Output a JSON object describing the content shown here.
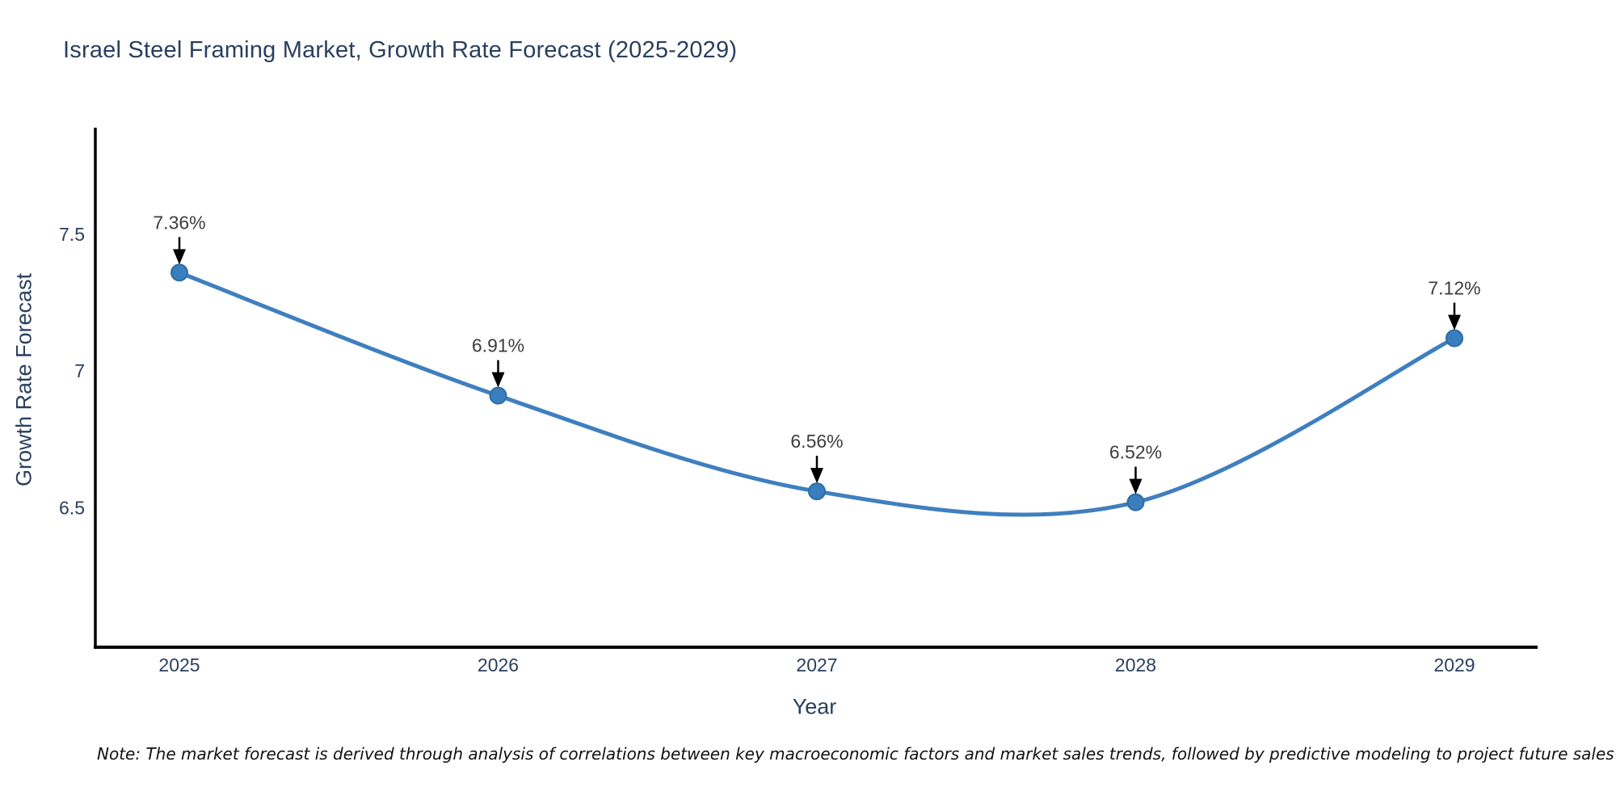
{
  "chart_data": {
    "type": "line",
    "title": "Israel Steel Framing Market, Growth Rate Forecast (2025-2029)",
    "xlabel": "Year",
    "ylabel": "Growth Rate Forecast",
    "categories": [
      "2025",
      "2026",
      "2027",
      "2028",
      "2029"
    ],
    "x": [
      2025,
      2026,
      2027,
      2028,
      2029
    ],
    "series": [
      {
        "name": "Growth Rate Forecast",
        "values": [
          7.36,
          6.91,
          6.56,
          6.52,
          7.12
        ]
      }
    ],
    "point_labels": [
      "7.36%",
      "6.91%",
      "6.56%",
      "6.52%",
      "7.12%"
    ],
    "yticks": [
      6.5,
      7,
      7.5
    ],
    "ytick_labels": [
      "6.5",
      "7",
      "7.5"
    ],
    "ylim": [
      5.99,
      7.89
    ],
    "line_shape": "spline",
    "grid": false,
    "legend": "none",
    "markers": true,
    "annotations_have_arrows": true,
    "colors": {
      "line": "#3f7fbf",
      "marker": "#3a7ebd",
      "marker_edge": "#2e6da4",
      "axis": "#000000",
      "tick_text": "#2a3f5f",
      "annotation_text": "#3d3d3d",
      "arrow": "#000000",
      "background": "#ffffff"
    },
    "note": "Note: The market forecast is derived through analysis of correlations between key macroeconomic factors and market sales trends, followed by predictive modeling to project future sales"
  }
}
